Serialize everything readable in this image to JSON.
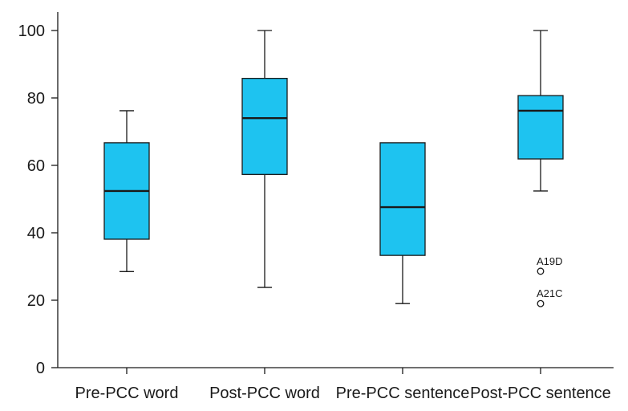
{
  "chart_data": {
    "type": "boxplot",
    "title": "",
    "xlabel": "",
    "ylabel": "",
    "ylim": [
      0,
      105
    ],
    "yticks": [
      0,
      20,
      40,
      60,
      80,
      100
    ],
    "box_color": "#1ec3f0",
    "line_color": "#1a1a1a",
    "categories": [
      "Pre-PCC word",
      "Post-PCC word",
      "Pre-PCC sentence",
      "Post-PCC sentence"
    ],
    "boxes": [
      {
        "category": "Pre-PCC word",
        "whisker_low": 28.5,
        "q1": 38.1,
        "median": 52.4,
        "q3": 66.7,
        "whisker_high": 76.2,
        "outliers": []
      },
      {
        "category": "Post-PCC word",
        "whisker_low": 23.8,
        "q1": 57.3,
        "median": 74.0,
        "q3": 85.8,
        "whisker_high": 100,
        "outliers": []
      },
      {
        "category": "Pre-PCC sentence",
        "whisker_low": 19.0,
        "q1": 33.3,
        "median": 47.6,
        "q3": 66.7,
        "whisker_high": 66.7,
        "outliers": []
      },
      {
        "category": "Post-PCC sentence",
        "whisker_low": 52.4,
        "q1": 61.9,
        "median": 76.2,
        "q3": 80.7,
        "whisker_high": 100,
        "outliers": [
          {
            "value": 28.6,
            "label": "A19D"
          },
          {
            "value": 19.0,
            "label": "A21C"
          }
        ]
      }
    ]
  }
}
